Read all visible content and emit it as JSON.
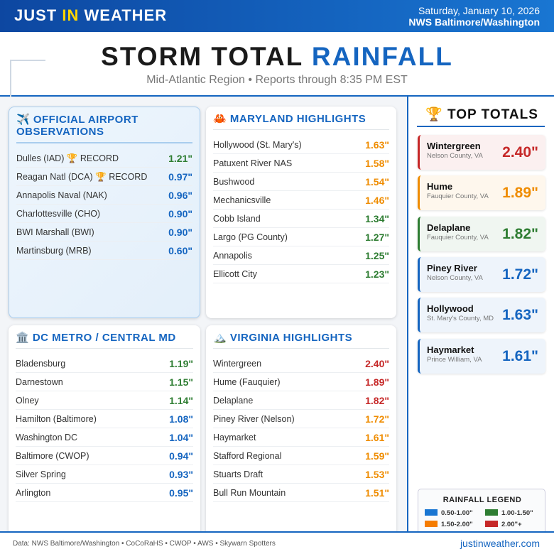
{
  "header": {
    "brand": [
      "JUST",
      "IN",
      "WEATHER"
    ],
    "date": "Saturday, January 10, 2026",
    "office": "NWS Baltimore/Washington"
  },
  "title": {
    "main": "STORM TOTAL",
    "highlight": "RAINFALL",
    "subtitle": "Mid-Atlantic Region • Reports through 8:35 PM EST"
  },
  "panels": [
    {
      "heading": "✈️ OFFICIAL AIRPORT OBSERVATIONS",
      "rows": [
        {
          "name": "Dulles (IAD) 🏆 RECORD",
          "amount": "1.21\"",
          "color": "#2e7d32"
        },
        {
          "name": "Reagan Natl (DCA) 🏆 RECORD",
          "amount": "0.97\"",
          "color": "#1565c0"
        },
        {
          "name": "Annapolis Naval (NAK)",
          "amount": "0.96\"",
          "color": "#1565c0"
        },
        {
          "name": "Charlottesville (CHO)",
          "amount": "0.90\"",
          "color": "#1565c0"
        },
        {
          "name": "BWI Marshall (BWI)",
          "amount": "0.90\"",
          "color": "#1565c0"
        },
        {
          "name": "Martinsburg (MRB)",
          "amount": "0.60\"",
          "color": "#1565c0"
        }
      ]
    },
    {
      "heading": "🦀 MARYLAND HIGHLIGHTS",
      "rows": [
        {
          "name": "Hollywood (St. Mary's)",
          "amount": "1.63\"",
          "color": "#ef8c00"
        },
        {
          "name": "Patuxent River NAS",
          "amount": "1.58\"",
          "color": "#ef8c00"
        },
        {
          "name": "Bushwood",
          "amount": "1.54\"",
          "color": "#ef8c00"
        },
        {
          "name": "Mechanicsville",
          "amount": "1.46\"",
          "color": "#ef8c00"
        },
        {
          "name": "Cobb Island",
          "amount": "1.34\"",
          "color": "#2e7d32"
        },
        {
          "name": "Largo (PG County)",
          "amount": "1.27\"",
          "color": "#2e7d32"
        },
        {
          "name": "Annapolis",
          "amount": "1.25\"",
          "color": "#2e7d32"
        },
        {
          "name": "Ellicott City",
          "amount": "1.23\"",
          "color": "#2e7d32"
        }
      ]
    },
    {
      "heading": "🏛️ DC METRO / CENTRAL MD",
      "rows": [
        {
          "name": "Bladensburg",
          "amount": "1.19\"",
          "color": "#2e7d32"
        },
        {
          "name": "Darnestown",
          "amount": "1.15\"",
          "color": "#2e7d32"
        },
        {
          "name": "Olney",
          "amount": "1.14\"",
          "color": "#2e7d32"
        },
        {
          "name": "Hamilton (Baltimore)",
          "amount": "1.08\"",
          "color": "#1565c0"
        },
        {
          "name": "Washington DC",
          "amount": "1.04\"",
          "color": "#1565c0"
        },
        {
          "name": "Baltimore (CWOP)",
          "amount": "0.94\"",
          "color": "#1565c0"
        },
        {
          "name": "Silver Spring",
          "amount": "0.93\"",
          "color": "#1565c0"
        },
        {
          "name": "Arlington",
          "amount": "0.95\"",
          "color": "#1565c0"
        }
      ]
    },
    {
      "heading": "🏔️ VIRGINIA HIGHLIGHTS",
      "rows": [
        {
          "name": "Wintergreen",
          "amount": "2.40\"",
          "color": "#c62828"
        },
        {
          "name": "Hume (Fauquier)",
          "amount": "1.89\"",
          "color": "#c62828"
        },
        {
          "name": "Delaplane",
          "amount": "1.82\"",
          "color": "#c62828"
        },
        {
          "name": "Piney River (Nelson)",
          "amount": "1.72\"",
          "color": "#ef8c00"
        },
        {
          "name": "Haymarket",
          "amount": "1.61\"",
          "color": "#ef8c00"
        },
        {
          "name": "Stafford Regional",
          "amount": "1.59\"",
          "color": "#ef8c00"
        },
        {
          "name": "Stuarts Draft",
          "amount": "1.53\"",
          "color": "#ef8c00"
        },
        {
          "name": "Bull Run Mountain",
          "amount": "1.51\"",
          "color": "#ef8c00"
        }
      ]
    }
  ],
  "top_totals": {
    "heading": "🏆 TOP TOTALS",
    "items": [
      {
        "name": "Wintergreen",
        "area": "Nelson County, VA",
        "amount": "2.40\"",
        "color": "#c62828"
      },
      {
        "name": "Hume",
        "area": "Fauquier County, VA",
        "amount": "1.89\"",
        "color": "#ef8c00"
      },
      {
        "name": "Delaplane",
        "area": "Fauquier County, VA",
        "amount": "1.82\"",
        "color": "#2e7d32"
      },
      {
        "name": "Piney River",
        "area": "Nelson County, VA",
        "amount": "1.72\"",
        "color": "#1565c0"
      },
      {
        "name": "Hollywood",
        "area": "St. Mary's County, MD",
        "amount": "1.63\"",
        "color": "#1565c0"
      },
      {
        "name": "Haymarket",
        "area": "Prince William, VA",
        "amount": "1.61\"",
        "color": "#1565c0"
      }
    ]
  },
  "legend": {
    "title": "RAINFALL LEGEND",
    "items": [
      {
        "label": "0.50-1.00\"",
        "color": "#1976d2"
      },
      {
        "label": "1.00-1.50\"",
        "color": "#2e7d32"
      },
      {
        "label": "1.50-2.00\"",
        "color": "#f57c00"
      },
      {
        "label": "2.00\"+",
        "color": "#c62828"
      }
    ]
  },
  "footer": {
    "sources": "Data: NWS Baltimore/Washington • CoCoRaHS • CWOP • AWS • Skywarn Spotters",
    "site": "justinweather.com"
  }
}
